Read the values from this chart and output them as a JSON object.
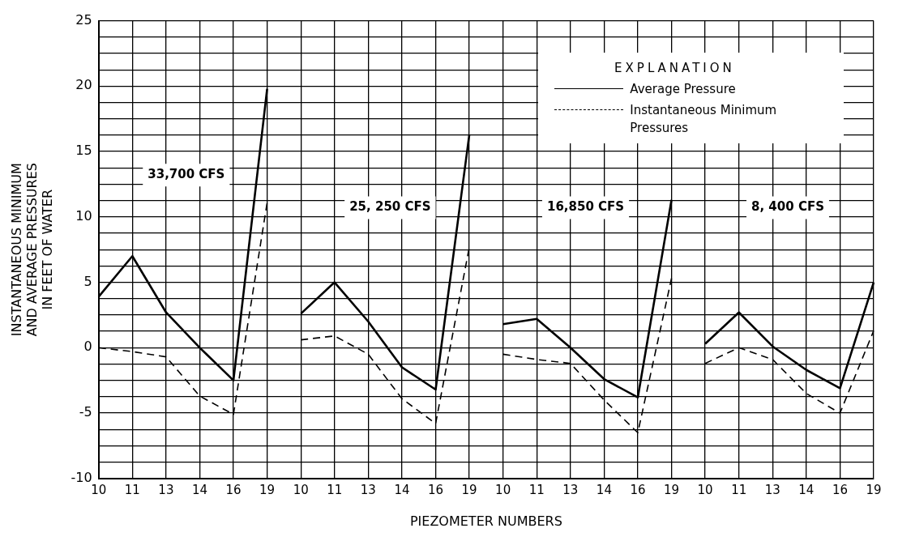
{
  "chart_data": {
    "type": "line",
    "xlabel": "PIEZOMETER NUMBERS",
    "ylabel": "INSTANTANEOUS MINIMUM\nAND AVERAGE PRESSURES\nIN FEET OF WATER",
    "legend_title": "EXPLANATION",
    "legend": "top right",
    "grid": true,
    "marker": "none",
    "categories": [
      "10",
      "11",
      "13",
      "14",
      "16",
      "19",
      "10",
      "11",
      "13",
      "14",
      "16",
      "19",
      "10",
      "11",
      "13",
      "14",
      "16",
      "19",
      "10",
      "11",
      "13",
      "14",
      "16",
      "19"
    ],
    "ylim": [
      -10,
      25
    ],
    "yticks": [
      -10,
      {
        "value": -8.75,
        "label": null
      },
      {
        "value": -7.5,
        "label": null
      },
      {
        "value": -6.25,
        "label": null
      },
      -5,
      {
        "value": -3.75,
        "label": null
      },
      {
        "value": -2.5,
        "label": null
      },
      {
        "value": -1.25,
        "label": null
      },
      0,
      {
        "value": 1.25,
        "label": null
      },
      {
        "value": 2.5,
        "label": null
      },
      {
        "value": 3.75,
        "label": null
      },
      5,
      {
        "value": 6.25,
        "label": null
      },
      {
        "value": 7.5,
        "label": null
      },
      {
        "value": 8.75,
        "label": null
      },
      10,
      {
        "value": 11.25,
        "label": null
      },
      {
        "value": 12.5,
        "label": null
      },
      {
        "value": 13.75,
        "label": null
      },
      15,
      {
        "value": 16.25,
        "label": null
      },
      {
        "value": 17.5,
        "label": null
      },
      {
        "value": 18.75,
        "label": null
      },
      20,
      {
        "value": 21.25,
        "label": null
      },
      {
        "value": 22.5,
        "label": null
      },
      {
        "value": 23.75,
        "label": null
      },
      25
    ],
    "annotations": [
      "33,700 CFS",
      "25, 250 CFS",
      "16,850 CFS",
      "8, 400 CFS"
    ],
    "series": [
      {
        "name": "Average Pressure",
        "color": "#000000",
        "line_style": "solid",
        "values": [
          3.9,
          7.0,
          2.7,
          0,
          -2.5,
          19.8,
          null,
          null,
          null,
          null,
          null,
          null,
          null,
          null,
          null,
          null,
          null,
          null,
          null,
          null,
          null,
          null,
          null,
          null
        ]
      },
      {
        "name": "Instantaneous Minimum Pressures",
        "color": "#000000",
        "line_style": "dashed",
        "values": [
          0,
          -0.3,
          -0.7,
          -3.7,
          -5.1,
          11.1,
          null,
          null,
          null,
          null,
          null,
          null,
          null,
          null,
          null,
          null,
          null,
          null,
          null,
          null,
          null,
          null,
          null,
          null
        ]
      },
      {
        "color": "#000000",
        "line_style": "solid",
        "values": [
          null,
          null,
          null,
          null,
          null,
          null,
          2.6,
          5.0,
          2.0,
          -1.5,
          -3.2,
          16.3,
          null,
          null,
          null,
          null,
          null,
          null,
          null,
          null,
          null,
          null,
          null,
          null
        ]
      },
      {
        "color": "#000000",
        "line_style": "dashed",
        "values": [
          null,
          null,
          null,
          null,
          null,
          null,
          0.6,
          0.9,
          -0.5,
          -3.9,
          -5.8,
          7.7,
          null,
          null,
          null,
          null,
          null,
          null,
          null,
          null,
          null,
          null,
          null,
          null
        ]
      },
      {
        "color": "#000000",
        "line_style": "solid",
        "values": [
          null,
          null,
          null,
          null,
          null,
          null,
          null,
          null,
          null,
          null,
          null,
          null,
          1.8,
          2.2,
          0,
          -2.4,
          -3.8,
          11.3,
          null,
          null,
          null,
          null,
          null,
          null
        ]
      },
      {
        "color": "#000000",
        "line_style": "dashed",
        "values": [
          null,
          null,
          null,
          null,
          null,
          null,
          null,
          null,
          null,
          null,
          null,
          null,
          -0.5,
          -0.9,
          -1.2,
          -4.0,
          -6.5,
          5.3,
          null,
          null,
          null,
          null,
          null,
          null
        ]
      },
      {
        "color": "#000000",
        "line_style": "solid",
        "values": [
          null,
          null,
          null,
          null,
          null,
          null,
          null,
          null,
          null,
          null,
          null,
          null,
          null,
          null,
          null,
          null,
          null,
          null,
          0.3,
          2.7,
          0.1,
          -1.7,
          -3.1,
          5.0
        ]
      },
      {
        "color": "#000000",
        "line_style": "dashed",
        "values": [
          null,
          null,
          null,
          null,
          null,
          null,
          null,
          null,
          null,
          null,
          null,
          null,
          null,
          null,
          null,
          null,
          null,
          null,
          -1.2,
          0,
          -0.9,
          -3.5,
          -5.0,
          1.3
        ]
      }
    ]
  }
}
